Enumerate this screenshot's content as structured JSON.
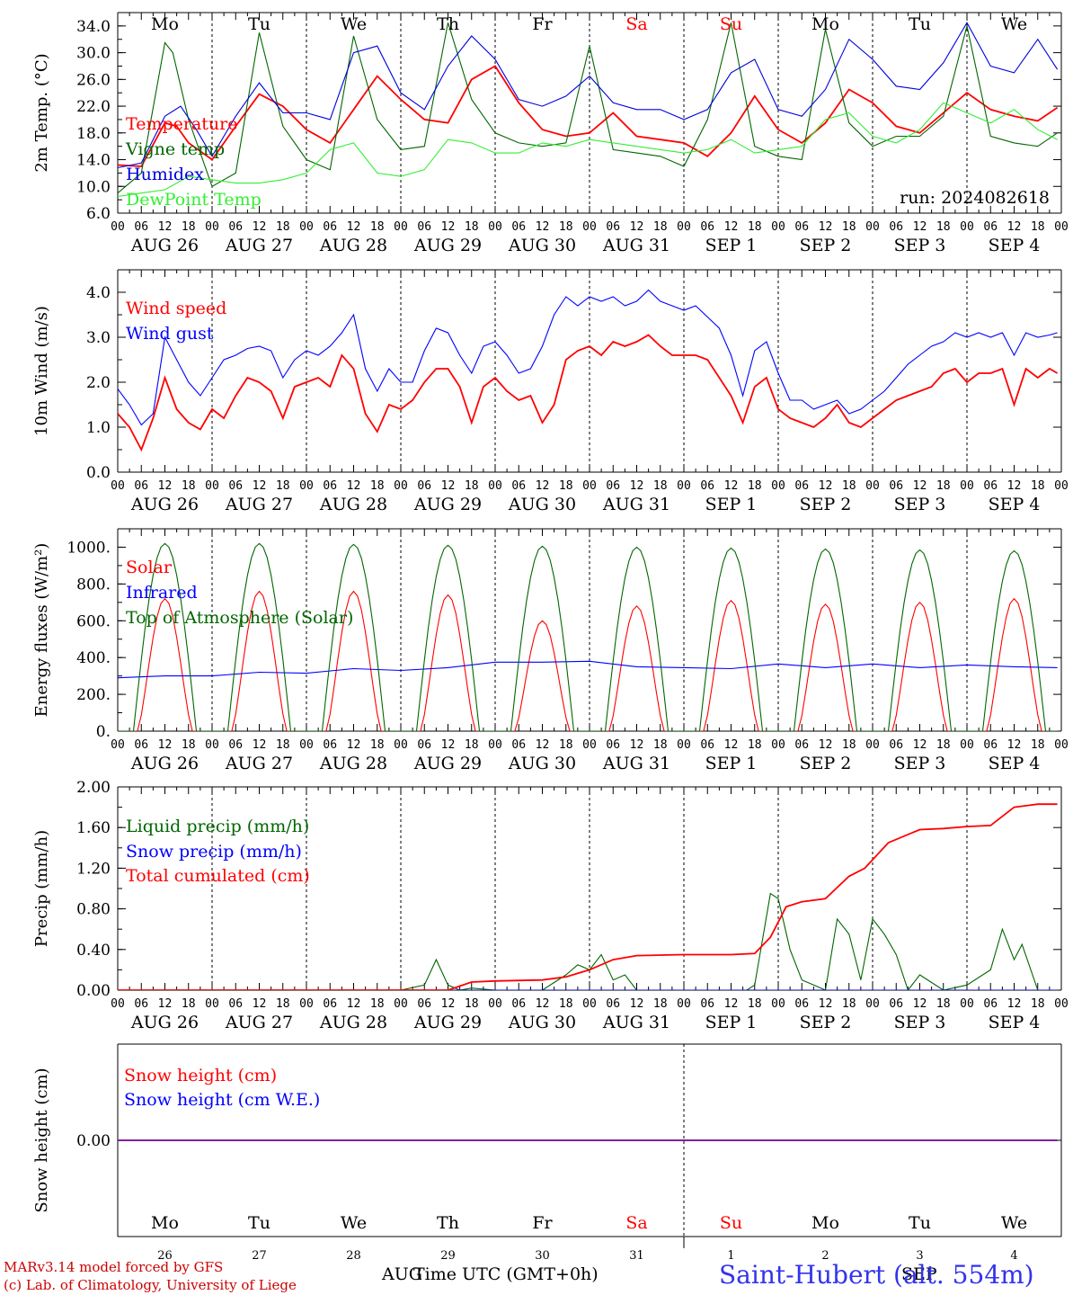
{
  "chart_data": [
    {
      "type": "line",
      "ylabel": "2m Temp. (°C)",
      "ylim": [
        6.0,
        36.0
      ],
      "yticks": [
        "6.0",
        "10.0",
        "14.0",
        "18.0",
        "22.0",
        "26.0",
        "30.0",
        "34.0"
      ],
      "run_label": "run: 2024082618",
      "weekdays": [
        {
          "label": "Mo",
          "color": "#000000"
        },
        {
          "label": "Tu",
          "color": "#000000"
        },
        {
          "label": "We",
          "color": "#000000"
        },
        {
          "label": "Th",
          "color": "#000000"
        },
        {
          "label": "Fr",
          "color": "#000000"
        },
        {
          "label": "Sa",
          "color": "#ff0000"
        },
        {
          "label": "Su",
          "color": "#ff0000"
        },
        {
          "label": "Mo",
          "color": "#000000"
        },
        {
          "label": "Tu",
          "color": "#000000"
        },
        {
          "label": "We",
          "color": "#000000"
        }
      ],
      "series": [
        {
          "name": "Temperature",
          "color": "#ff0000",
          "x": [
            0,
            6,
            12,
            15,
            18,
            24,
            30,
            36,
            42,
            48,
            54,
            60,
            66,
            72,
            78,
            84,
            90,
            96,
            102,
            108,
            114,
            120,
            126,
            132,
            138,
            144,
            150,
            156,
            162,
            168,
            174,
            180,
            186,
            192,
            198,
            204,
            210,
            216,
            222,
            228,
            234,
            239
          ],
          "values": [
            13.2,
            13.0,
            19.5,
            19.0,
            16.5,
            14.0,
            19.0,
            23.8,
            22.0,
            18.5,
            16.5,
            21.5,
            26.5,
            23.0,
            20.0,
            19.5,
            26.0,
            28.0,
            22.5,
            18.5,
            17.5,
            18.0,
            21.0,
            17.5,
            17.0,
            16.5,
            14.5,
            18.0,
            23.5,
            18.5,
            16.5,
            19.5,
            24.5,
            22.5,
            19.0,
            18.0,
            21.0,
            24.0,
            21.5,
            20.5,
            19.8,
            21.8
          ]
        },
        {
          "name": "Vigne temp",
          "color": "#006600",
          "x": [
            0,
            6,
            12,
            14,
            18,
            24,
            30,
            36,
            42,
            48,
            54,
            60,
            66,
            72,
            78,
            84,
            90,
            96,
            102,
            108,
            114,
            120,
            126,
            132,
            138,
            144,
            150,
            156,
            162,
            168,
            174,
            180,
            186,
            192,
            198,
            204,
            210,
            216,
            222,
            228,
            234,
            239
          ],
          "values": [
            9.0,
            12.0,
            31.5,
            30.0,
            20.0,
            10.0,
            12.0,
            33.0,
            19.0,
            14.0,
            12.5,
            32.5,
            20.0,
            15.5,
            16.0,
            34.5,
            23.0,
            18.0,
            16.5,
            16.0,
            16.5,
            31.0,
            15.5,
            15.0,
            14.5,
            13.0,
            20.0,
            34.5,
            16.0,
            14.5,
            14.0,
            33.5,
            19.5,
            16.0,
            17.5,
            17.5,
            20.5,
            34.0,
            17.5,
            16.5,
            16.0,
            18.0
          ]
        },
        {
          "name": "Humidex",
          "color": "#0000dd",
          "x": [
            0,
            6,
            12,
            16,
            20,
            24,
            30,
            36,
            42,
            48,
            54,
            60,
            66,
            72,
            78,
            84,
            90,
            96,
            102,
            108,
            114,
            120,
            126,
            132,
            138,
            144,
            150,
            156,
            162,
            168,
            174,
            180,
            186,
            192,
            198,
            204,
            210,
            216,
            222,
            228,
            234,
            239
          ],
          "values": [
            12.8,
            13.5,
            20.5,
            22.0,
            18.5,
            14.5,
            20.5,
            25.5,
            21.0,
            21.0,
            20.0,
            30.0,
            31.0,
            24.0,
            21.5,
            28.0,
            32.5,
            29.0,
            23.0,
            22.0,
            23.5,
            26.5,
            22.5,
            21.5,
            21.5,
            20.0,
            21.5,
            27.0,
            29.0,
            21.5,
            20.5,
            24.5,
            32.0,
            29.0,
            25.0,
            24.5,
            28.5,
            34.5,
            28.0,
            27.0,
            32.0,
            27.5
          ]
        },
        {
          "name": "DewPoint Temp",
          "color": "#33ee33",
          "x": [
            0,
            6,
            12,
            18,
            24,
            30,
            36,
            42,
            48,
            54,
            60,
            66,
            72,
            78,
            84,
            90,
            96,
            102,
            108,
            114,
            120,
            126,
            132,
            138,
            144,
            150,
            156,
            162,
            168,
            174,
            180,
            186,
            192,
            198,
            204,
            210,
            216,
            222,
            228,
            234,
            239
          ],
          "values": [
            8.5,
            9.0,
            9.5,
            11.5,
            11.0,
            10.5,
            10.5,
            11.0,
            12.0,
            15.5,
            16.5,
            12.0,
            11.5,
            12.5,
            17.0,
            16.5,
            15.0,
            15.0,
            16.5,
            16.0,
            17.0,
            16.5,
            16.0,
            15.5,
            15.0,
            15.5,
            17.0,
            15.0,
            15.5,
            16.0,
            20.0,
            21.0,
            17.5,
            16.5,
            18.5,
            22.5,
            21.0,
            19.5,
            21.5,
            18.5,
            17.0
          ]
        }
      ]
    },
    {
      "type": "line",
      "ylabel": "10m Wind (m/s)",
      "ylim": [
        0.0,
        4.5
      ],
      "yticks": [
        "0.0",
        "1.0",
        "2.0",
        "3.0",
        "4.0"
      ],
      "series": [
        {
          "name": "Wind speed",
          "color": "#ff0000",
          "x": [
            0,
            3,
            6,
            9,
            12,
            15,
            18,
            21,
            24,
            27,
            30,
            33,
            36,
            39,
            42,
            45,
            48,
            51,
            54,
            57,
            60,
            63,
            66,
            69,
            72,
            75,
            78,
            81,
            84,
            87,
            90,
            93,
            96,
            99,
            102,
            105,
            108,
            111,
            114,
            117,
            120,
            123,
            126,
            129,
            132,
            135,
            138,
            141,
            144,
            147,
            150,
            153,
            156,
            159,
            162,
            165,
            168,
            171,
            174,
            177,
            180,
            183,
            186,
            189,
            192,
            195,
            198,
            201,
            204,
            207,
            210,
            213,
            216,
            219,
            222,
            225,
            228,
            231,
            234,
            237,
            239
          ],
          "values": [
            1.3,
            1.0,
            0.5,
            1.2,
            2.1,
            1.4,
            1.1,
            0.95,
            1.4,
            1.2,
            1.7,
            2.1,
            2.0,
            1.8,
            1.2,
            1.9,
            2.0,
            2.1,
            1.9,
            2.6,
            2.3,
            1.3,
            0.9,
            1.5,
            1.4,
            1.6,
            2.0,
            2.3,
            2.3,
            1.9,
            1.1,
            1.9,
            2.1,
            1.8,
            1.6,
            1.7,
            1.1,
            1.5,
            2.5,
            2.7,
            2.8,
            2.6,
            2.9,
            2.8,
            2.9,
            3.05,
            2.8,
            2.6,
            2.6,
            2.6,
            2.5,
            2.1,
            1.7,
            1.1,
            1.9,
            2.1,
            1.4,
            1.2,
            1.1,
            1.0,
            1.2,
            1.5,
            1.1,
            1.0,
            1.2,
            1.4,
            1.6,
            1.7,
            1.8,
            1.9,
            2.2,
            2.3,
            2.0,
            2.2,
            2.2,
            2.3,
            1.5,
            2.3,
            2.1,
            2.3,
            2.2
          ]
        },
        {
          "name": "Wind gust",
          "color": "#0000ff",
          "x": [
            0,
            3,
            6,
            9,
            12,
            15,
            18,
            21,
            24,
            27,
            30,
            33,
            36,
            39,
            42,
            45,
            48,
            51,
            54,
            57,
            60,
            63,
            66,
            69,
            72,
            75,
            78,
            81,
            84,
            87,
            90,
            93,
            96,
            99,
            102,
            105,
            108,
            111,
            114,
            117,
            120,
            123,
            126,
            129,
            132,
            135,
            138,
            141,
            144,
            147,
            150,
            153,
            156,
            159,
            162,
            165,
            168,
            171,
            174,
            177,
            180,
            183,
            186,
            189,
            192,
            195,
            198,
            201,
            204,
            207,
            210,
            213,
            216,
            219,
            222,
            225,
            228,
            231,
            234,
            237,
            239
          ],
          "values": [
            1.85,
            1.5,
            1.05,
            1.3,
            3.0,
            2.5,
            2.0,
            1.7,
            2.1,
            2.5,
            2.6,
            2.75,
            2.8,
            2.7,
            2.1,
            2.5,
            2.7,
            2.6,
            2.8,
            3.1,
            3.5,
            2.3,
            1.8,
            2.3,
            2.0,
            2.0,
            2.7,
            3.2,
            3.1,
            2.6,
            2.2,
            2.8,
            2.9,
            2.6,
            2.2,
            2.3,
            2.8,
            3.5,
            3.9,
            3.7,
            3.9,
            3.8,
            3.9,
            3.7,
            3.8,
            4.05,
            3.8,
            3.7,
            3.6,
            3.7,
            3.45,
            3.2,
            2.6,
            1.7,
            2.7,
            2.9,
            2.2,
            1.6,
            1.6,
            1.4,
            1.5,
            1.6,
            1.3,
            1.4,
            1.6,
            1.8,
            2.1,
            2.4,
            2.6,
            2.8,
            2.9,
            3.1,
            3.0,
            3.1,
            3.0,
            3.1,
            2.6,
            3.1,
            3.0,
            3.05,
            3.1
          ]
        }
      ]
    },
    {
      "type": "line",
      "ylabel": "Energy fluxes (W/m²)",
      "ylim": [
        0,
        1100
      ],
      "yticks": [
        "0.",
        "200.",
        "400.",
        "600.",
        "800.",
        "1000."
      ],
      "series": [
        {
          "name": "Solar",
          "color": "#ff0000",
          "peaks": [
            720,
            760,
            760,
            740,
            600,
            680,
            710,
            690,
            700,
            720
          ]
        },
        {
          "name": "Infrared",
          "color": "#0000ff",
          "x": [
            0,
            12,
            24,
            36,
            48,
            60,
            72,
            84,
            96,
            108,
            120,
            132,
            144,
            156,
            168,
            180,
            192,
            204,
            216,
            228,
            239
          ],
          "values": [
            290,
            300,
            300,
            320,
            315,
            340,
            330,
            345,
            375,
            375,
            380,
            350,
            345,
            340,
            365,
            345,
            365,
            345,
            360,
            350,
            345
          ]
        },
        {
          "name": "Top of Atmosphere (Solar)",
          "color": "#006600",
          "peaks": [
            1020,
            1020,
            1015,
            1010,
            1005,
            1000,
            995,
            990,
            985,
            980
          ]
        }
      ]
    },
    {
      "type": "line",
      "ylabel": "Precip (mm/h)",
      "ylim": [
        0.0,
        2.0
      ],
      "yticks": [
        "0.00",
        "0.40",
        "0.80",
        "1.20",
        "1.60",
        "2.00"
      ],
      "series": [
        {
          "name": "Liquid precip (mm/h)",
          "color": "#006600",
          "x": [
            0,
            72,
            78,
            81,
            84,
            87,
            90,
            96,
            108,
            114,
            117,
            120,
            123,
            126,
            129,
            132,
            144,
            156,
            160,
            162,
            166,
            168,
            171,
            174,
            177,
            180,
            183,
            186,
            189,
            192,
            195,
            198,
            201,
            204,
            210,
            216,
            222,
            225,
            228,
            230,
            234
          ],
          "values": [
            0,
            0,
            0.05,
            0.3,
            0.05,
            0,
            0.02,
            0,
            0,
            0.15,
            0.25,
            0.2,
            0.35,
            0.1,
            0.15,
            0,
            0,
            0,
            0,
            0.05,
            0.95,
            0.9,
            0.4,
            0.1,
            0.05,
            0,
            0.7,
            0.55,
            0.1,
            0.7,
            0.55,
            0.35,
            0,
            0.15,
            0,
            0.05,
            0.2,
            0.6,
            0.3,
            0.45,
            0
          ]
        },
        {
          "name": "Snow precip (mm/h)",
          "color": "#0000ff",
          "x": [
            0,
            239
          ],
          "values": [
            0,
            0
          ]
        },
        {
          "name": "Total cumulated (cm)",
          "color": "#ff0000",
          "x": [
            0,
            84,
            87,
            90,
            96,
            108,
            114,
            120,
            126,
            132,
            144,
            156,
            162,
            166,
            170,
            174,
            180,
            186,
            190,
            196,
            204,
            210,
            216,
            222,
            228,
            234,
            239
          ],
          "values": [
            0,
            0,
            0.04,
            0.08,
            0.09,
            0.1,
            0.13,
            0.2,
            0.3,
            0.34,
            0.35,
            0.35,
            0.36,
            0.52,
            0.82,
            0.87,
            0.9,
            1.12,
            1.2,
            1.45,
            1.58,
            1.59,
            1.61,
            1.62,
            1.8,
            1.83,
            1.83
          ]
        }
      ]
    },
    {
      "type": "line",
      "ylabel": "Snow height (cm)",
      "yticks": [
        "0.00"
      ],
      "series": [
        {
          "name": "Snow height (cm)",
          "color": "#ff0000",
          "x": [
            0,
            239
          ],
          "values": [
            0,
            0
          ]
        },
        {
          "name": "Snow height (cm W.E.)",
          "color": "#0000ff",
          "x": [
            0,
            239
          ],
          "values": [
            0,
            0
          ]
        }
      ]
    }
  ],
  "x_axis": {
    "hour_labels": [
      "00",
      "06",
      "12",
      "18"
    ],
    "date_labels": [
      "AUG 26",
      "AUG 27",
      "AUG 28",
      "AUG 29",
      "AUG 30",
      "AUG 31",
      "SEP  1",
      "SEP  2",
      "SEP  3",
      "SEP  4"
    ],
    "bottom_day_numbers": [
      "26",
      "27",
      "28",
      "29",
      "30",
      "31",
      "1",
      "2",
      "3",
      "4"
    ],
    "bottom_month_left": "AUG",
    "bottom_month_right": "SEP",
    "xlabel": "Time UTC (GMT+0h)"
  },
  "footer": {
    "line1": "MARv3.14 model forced by GFS",
    "line2": "(c) Lab. of Climatology, University of Liege",
    "station": "Saint-Hubert (alt. 554m)"
  }
}
